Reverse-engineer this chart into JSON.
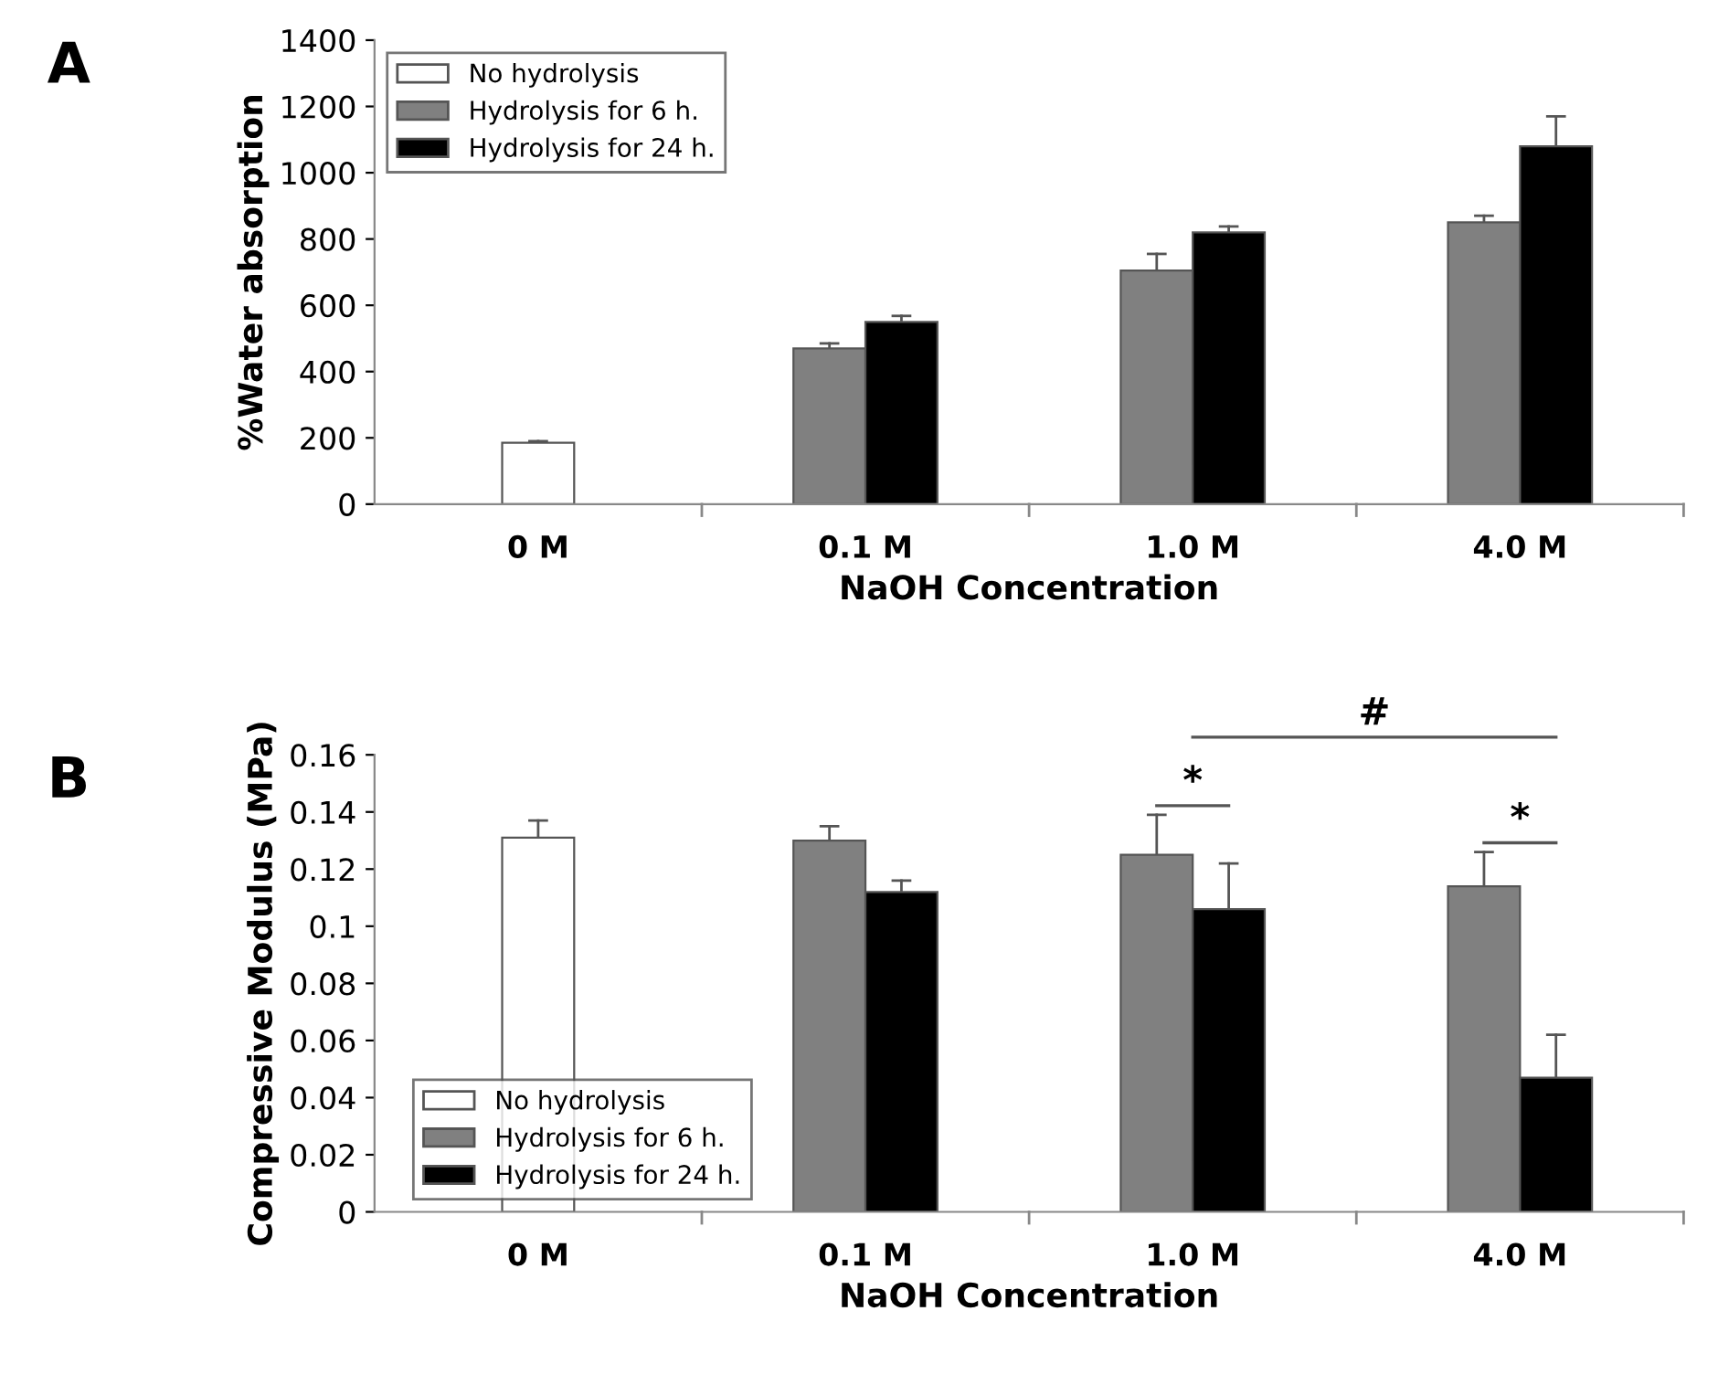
{
  "chart_data": [
    {
      "type": "bar",
      "title": "A",
      "xlabel": "NaOH Concentration",
      "ylabel": "%Water absorption",
      "categories": [
        "0 M",
        "0.1 M",
        "1.0 M",
        "4.0 M"
      ],
      "series": [
        {
          "name": "No hydrolysis",
          "color": "#ffffff",
          "values": [
            185,
            null,
            null,
            null
          ],
          "errors": [
            [
              185,
              190
            ],
            null,
            null,
            null
          ]
        },
        {
          "name": "Hydrolysis for 6 h.",
          "color": "#808080",
          "values": [
            null,
            470,
            705,
            850
          ],
          "errors": [
            null,
            [
              470,
              485
            ],
            [
              705,
              755
            ],
            [
              850,
              870
            ]
          ]
        },
        {
          "name": "Hydrolysis for 24 h.",
          "color": "#000000",
          "values": [
            null,
            550,
            820,
            1080
          ],
          "errors": [
            null,
            [
              550,
              568
            ],
            [
              820,
              838
            ],
            [
              1080,
              1170
            ]
          ]
        }
      ],
      "ylim": [
        0,
        1400
      ],
      "yticks": [
        0,
        200,
        400,
        600,
        800,
        1000,
        1200,
        1400
      ],
      "legend": "top left",
      "grid": false
    },
    {
      "type": "bar",
      "title": "B",
      "xlabel": "NaOH Concentration",
      "ylabel": "Compressive Modulus (MPa)",
      "categories": [
        "0 M",
        "0.1 M",
        "1.0 M",
        "4.0 M"
      ],
      "series": [
        {
          "name": "No hydrolysis",
          "color": "#ffffff",
          "values": [
            0.131,
            null,
            null,
            null
          ],
          "errors": [
            [
              0.131,
              0.137
            ],
            null,
            null,
            null
          ]
        },
        {
          "name": "Hydrolysis for 6 h.",
          "color": "#808080",
          "values": [
            null,
            0.13,
            0.125,
            0.114
          ],
          "errors": [
            null,
            [
              0.13,
              0.135
            ],
            [
              0.125,
              0.139
            ],
            [
              0.114,
              0.126
            ]
          ]
        },
        {
          "name": "Hydrolysis for 24 h.",
          "color": "#000000",
          "values": [
            null,
            0.112,
            0.106,
            0.047
          ],
          "errors": [
            null,
            [
              0.112,
              0.116
            ],
            [
              0.106,
              0.122
            ],
            [
              0.047,
              0.062
            ]
          ]
        }
      ],
      "ylim": [
        0,
        0.16
      ],
      "yticks": [
        0,
        0.02,
        0.04,
        0.06,
        0.08,
        {
          "value": 0.1,
          "label": "0.1"
        },
        0.12,
        0.14,
        0.16
      ],
      "legend": "bottom left",
      "grid": false,
      "annotations": [
        "*",
        "*",
        "#"
      ]
    }
  ]
}
